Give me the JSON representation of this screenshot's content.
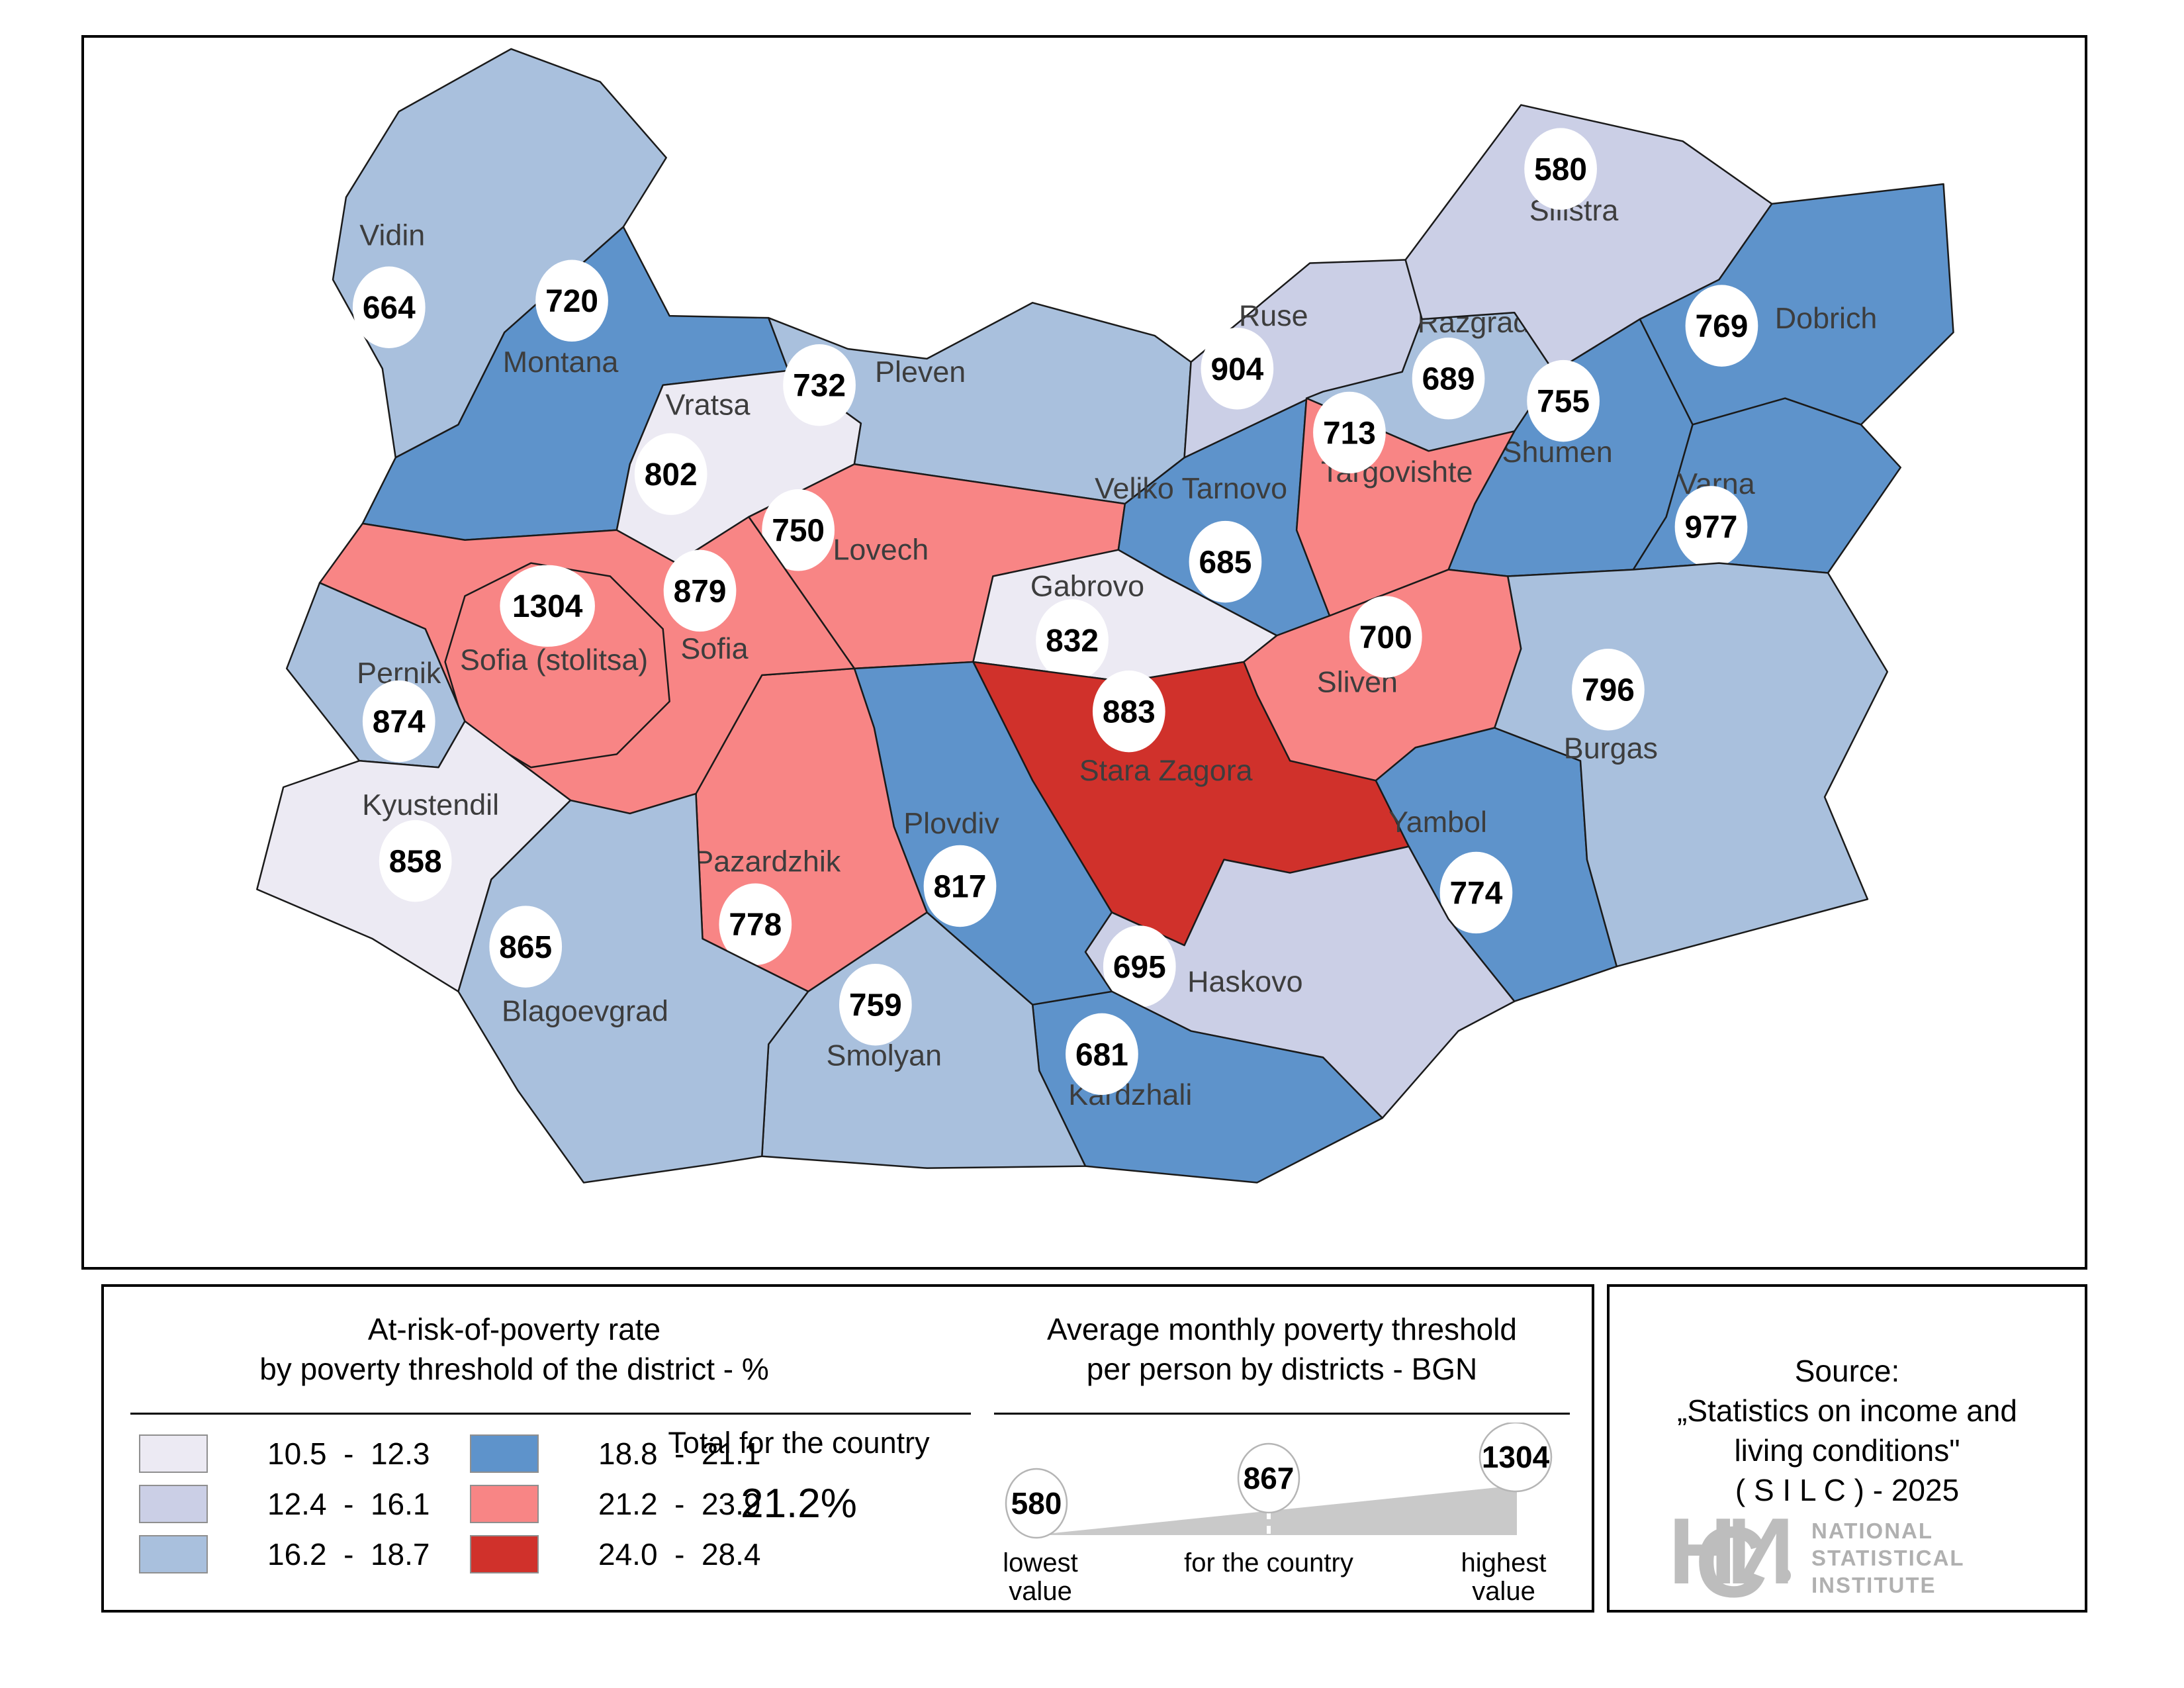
{
  "map": {
    "outline_color": "#1a1a1a",
    "category_colors": {
      "1": "#eceaf3",
      "2": "#cbcfe6",
      "3": "#a9c0dd",
      "4": "#5e93cb",
      "5": "#f88585",
      "6": "#d0312b"
    },
    "districts": [
      {
        "name": "Vidin",
        "value": "664",
        "cat": "3",
        "label": [
          590,
          368
        ],
        "circle": [
          585,
          462
        ],
        "poly": "770,70 905,120 1005,235 940,340 760,500 690,640 595,690 575,555 500,420 520,295 600,165"
      },
      {
        "name": "Montana",
        "value": "720",
        "cat": "4",
        "label": [
          845,
          560
        ],
        "circle": [
          862,
          452
        ],
        "poly": "940,340 1010,475 1160,478 1190,558 1000,580 950,700 930,800 700,815 545,790 595,690 690,640 760,500"
      },
      {
        "name": "Vratsa",
        "value": "802",
        "cat": "1",
        "label": [
          1068,
          625
        ],
        "circle": [
          1012,
          715
        ],
        "poly": "1190,558 1300,638 1290,700 1130,780 1020,850 930,800 950,700 1000,580"
      },
      {
        "name": "Pleven",
        "value": "732",
        "cat": "3",
        "label": [
          1390,
          575
        ],
        "circle": [
          1237,
          580
        ],
        "poly": "1160,478 1280,525 1400,540 1560,455 1745,505 1800,545 1790,690 1700,760 1290,700 1300,638 1190,558"
      },
      {
        "name": "Lovech",
        "value": "750",
        "cat": "5",
        "label": [
          1330,
          845
        ],
        "circle": [
          1205,
          800
        ],
        "poly": "1290,700 1700,760 1690,830 1500,870 1470,1000 1290,1010 1130,780"
      },
      {
        "name": "Veliko Tarnovo",
        "value": "685",
        "cat": "4",
        "label": [
          1800,
          752
        ],
        "circle": [
          1852,
          848
        ],
        "poly": "1790,690 2000,590 1975,600 1960,800 2010,930 1930,960 1760,870 1690,830 1700,760"
      },
      {
        "name": "Ruse",
        "value": "904",
        "cat": "2",
        "label": [
          1925,
          490
        ],
        "circle": [
          1870,
          555
        ],
        "poly": "1800,545 1980,395 2125,390 2150,480 2120,560 2000,590 1790,690"
      },
      {
        "name": "Razgrad",
        "value": "689",
        "cat": "3",
        "label": [
          2228,
          500
        ],
        "circle": [
          2190,
          570
        ],
        "poly": "2150,480 2290,470 2350,560 2290,650 2160,680 1975,600 2000,590 2120,560"
      },
      {
        "name": "Silistra",
        "value": "580",
        "cat": "2",
        "label": [
          2380,
          330
        ],
        "circle": [
          2360,
          252
        ],
        "poly": "2125,390 2300,155 2545,210 2680,305 2600,420 2480,480 2350,560 2290,470 2150,480"
      },
      {
        "name": "Dobrich",
        "value": "769",
        "cat": "4",
        "label": [
          2762,
          494
        ],
        "circle": [
          2604,
          490
        ],
        "poly": "2680,305 2940,275 2955,500 2815,640 2700,600 2560,640 2480,480 2600,420"
      },
      {
        "name": "Shumen",
        "value": "755",
        "cat": "4",
        "label": [
          2355,
          697
        ],
        "circle": [
          2364,
          604
        ],
        "poly": "2290,650 2350,560 2480,480 2560,640 2520,780 2470,860 2280,870 2190,860 2230,760"
      },
      {
        "name": "Targovishte",
        "value": "713",
        "cat": "5",
        "label": [
          2112,
          727
        ],
        "circle": [
          2040,
          652
        ],
        "poly": "1975,600 2160,680 2290,650 2230,760 2190,860 2010,930 1960,800"
      },
      {
        "name": "Varna",
        "value": "977",
        "cat": "4",
        "label": [
          2596,
          745
        ],
        "circle": [
          2588,
          795
        ],
        "poly": "2560,640 2700,600 2815,640 2875,705 2765,865 2600,850 2470,860 2520,780"
      },
      {
        "name": "Gabrovo",
        "value": "832",
        "cat": "1",
        "label": [
          1643,
          900
        ],
        "circle": [
          1620,
          967
        ],
        "poly": "1690,830 1760,870 1930,960 1880,1000 1700,1030 1470,1000 1500,870"
      },
      {
        "name": "Sliven",
        "value": "700",
        "cat": "5",
        "label": [
          2052,
          1046
        ],
        "circle": [
          2095,
          962
        ],
        "poly": "1930,960 2010,930 2190,860 2280,870 2300,980 2260,1100 2140,1130 2080,1180 1950,1150 1900,1050 1880,1000"
      },
      {
        "name": "Stara Zagora",
        "value": "883",
        "cat": "6",
        "label": [
          1762,
          1180
        ],
        "circle": [
          1706,
          1075
        ],
        "poly": "1470,1000 1700,1030 1880,1000 1900,1050 1950,1150 2080,1180 2130,1280 1950,1320 1850,1300 1790,1430 1680,1380 1620,1280 1560,1180"
      },
      {
        "name": "Yambol",
        "value": "774",
        "cat": "4",
        "label": [
          2174,
          1258
        ],
        "circle": [
          2232,
          1350
        ],
        "poly": "2080,1180 2140,1130 2260,1100 2390,1150 2400,1300 2445,1462 2290,1515 2190,1390 2130,1280"
      },
      {
        "name": "Burgas",
        "value": "796",
        "cat": "3",
        "label": [
          2436,
          1146
        ],
        "circle": [
          2432,
          1042
        ],
        "poly": "2280,870 2470,860 2600,850 2765,865 2855,1015 2760,1205 2825,1360 2445,1462 2400,1300 2390,1150 2260,1100 2300,980"
      },
      {
        "name": "Haskovo",
        "value": "695",
        "cat": "2",
        "label": [
          1882,
          1500
        ],
        "circle": [
          1722,
          1462
        ],
        "poly": "1680,1380 1790,1430 1850,1300 1950,1320 2130,1280 2190,1390 2290,1515 2205,1560 2090,1692 2000,1600 1800,1560 1680,1500 1640,1440"
      },
      {
        "name": "Kardzhali",
        "value": "681",
        "cat": "4",
        "label": [
          1708,
          1672
        ],
        "circle": [
          1665,
          1595
        ],
        "poly": "1680,1500 1800,1560 2000,1600 2090,1692 1900,1790 1640,1765 1570,1620 1560,1520"
      },
      {
        "name": "Smolyan",
        "value": "759",
        "cat": "3",
        "label": [
          1335,
          1612
        ],
        "circle": [
          1322,
          1520
        ],
        "poly": "1400,1380 1560,1520 1570,1620 1640,1765 1400,1768 1150,1750 1160,1580 1220,1500"
      },
      {
        "name": "Plovdiv",
        "value": "817",
        "cat": "4",
        "label": [
          1437,
          1260
        ],
        "circle": [
          1450,
          1340
        ],
        "poly": "1290,1010 1470,1000 1560,1180 1620,1280 1680,1380 1640,1440 1680,1500 1560,1520 1400,1380 1350,1250 1320,1100"
      },
      {
        "name": "Pazardzhik",
        "value": "778",
        "cat": "5",
        "label": [
          1158,
          1318
        ],
        "circle": [
          1140,
          1398
        ],
        "poly": "1150,1020 1290,1010 1320,1100 1350,1250 1400,1380 1220,1500 1060,1420 1050,1200"
      },
      {
        "name": "Sofia",
        "value": "879",
        "cat": "5",
        "label": [
          1078,
          995
        ],
        "circle": [
          1056,
          892
        ],
        "poly": "545,790 700,815 930,800 1020,850 1130,780 1290,1010 1150,1020 1050,1200 950,1230 860,1210 780,1150 700,1090 640,950 480,880"
      },
      {
        "name": "Sofia (stolitsa)",
        "value": "1304",
        "cat": "5",
        "label": [
          835,
          1012
        ],
        "circle": [
          825,
          915
        ],
        "poly": "700,900 800,850 920,870 1000,950 1010,1060 930,1140 800,1160 700,1100 670,1000"
      },
      {
        "name": "Pernik",
        "value": "874",
        "cat": "3",
        "label": [
          600,
          1032
        ],
        "circle": [
          600,
          1090
        ],
        "poly": "430,1010 480,880 640,950 700,1090 660,1160 540,1150"
      },
      {
        "name": "Kyustendil",
        "value": "858",
        "cat": "1",
        "label": [
          648,
          1232
        ],
        "circle": [
          625,
          1302
        ],
        "poly": "425,1190 540,1150 660,1160 700,1090 780,1150 860,1210 740,1330 690,1500 560,1420 385,1345"
      },
      {
        "name": "Blagoevgrad",
        "value": "865",
        "cat": "3",
        "label": [
          882,
          1545
        ],
        "circle": [
          792,
          1432
        ],
        "poly": "860,1210 950,1230 1050,1200 1060,1420 1220,1500 1160,1580 1150,1750 1075,1762 880,1790 780,1650 690,1500 740,1330"
      }
    ]
  },
  "legend": {
    "title_line1": "At-risk-of-poverty rate",
    "title_line2": "by poverty threshold of the district - %",
    "items": [
      {
        "range": "10.5  -  12.3",
        "cat": "1"
      },
      {
        "range": "12.4  -  16.1",
        "cat": "2"
      },
      {
        "range": "16.2  -  18.7",
        "cat": "3"
      },
      {
        "range": "18.8  -  21.1",
        "cat": "4"
      },
      {
        "range": "21.2  -  23.9",
        "cat": "5"
      },
      {
        "range": "24.0  -  28.4",
        "cat": "6"
      }
    ],
    "total_label": "Total for the country",
    "total_value": "21.2%"
  },
  "threshold_panel": {
    "title_line1": "Average monthly poverty threshold",
    "title_line2": "per person by districts - BGN",
    "lowest": {
      "value": "580",
      "label_line1": "lowest",
      "label_line2": "value"
    },
    "country": {
      "value": "867",
      "label": "for the country"
    },
    "highest": {
      "value": "1304",
      "label_line1": "highest",
      "label_line2": "value"
    }
  },
  "source_panel": {
    "line1": "Source:",
    "line2": "„Statistics on income and",
    "line3": "living conditions\"",
    "line4": "( S I L C ) - 2025",
    "logo_letters": [
      "Н",
      "С",
      "И"
    ],
    "institute_line1": "NATIONAL",
    "institute_line2": "STATISTICAL",
    "institute_line3": "INSTITUTE"
  }
}
